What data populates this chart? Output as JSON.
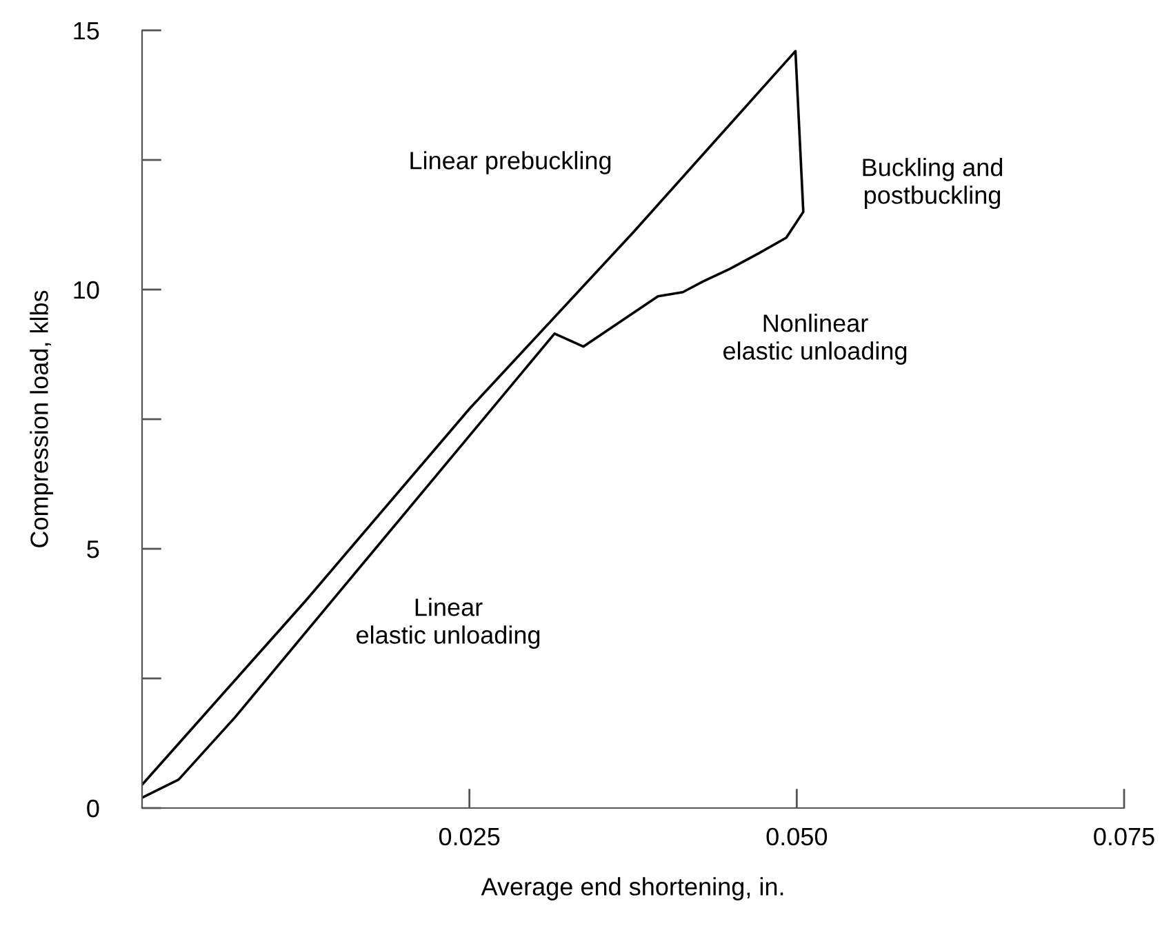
{
  "chart_data": {
    "type": "line",
    "xlabel": "Average end shortening, in.",
    "ylabel": "Compression load, klbs",
    "series": [
      {
        "color": "#000000",
        "x": [
          0,
          0.0125,
          0.025,
          0.0375,
          0.0499,
          0.0505,
          0.0492,
          0.0471,
          0.0449,
          0.0428,
          0.0413,
          0.0394,
          0.0337,
          0.0315,
          0.0155,
          0.0071,
          0.0028,
          0
        ],
        "values": [
          0.45,
          4.0,
          7.7,
          11.1,
          14.6,
          11.5,
          11.0,
          10.7,
          10.4,
          10.15,
          9.95,
          9.87,
          8.9,
          9.15,
          4.3,
          1.75,
          0.55,
          0.2
        ]
      }
    ],
    "xlim": [
      0,
      0.075
    ],
    "ylim": [
      0,
      15
    ],
    "xticks": [
      {
        "value": 0.025,
        "label": "0.025"
      },
      {
        "value": 0.05,
        "label": "0.050"
      },
      {
        "value": 0.075,
        "label": "0.075"
      }
    ],
    "yticks": [
      0,
      {
        "value": 2.5,
        "label": null
      },
      5,
      {
        "value": 7.5,
        "label": null
      },
      10,
      {
        "value": 12.5,
        "label": null
      },
      15
    ],
    "grid": false,
    "legend": false,
    "marker": "none",
    "line_style": "solid",
    "annotations": [
      "Linear prebuckling",
      "Buckling and\npostbuckling",
      "Nonlinear\nelastic unloading",
      "Linear\nelastic unloading"
    ]
  }
}
